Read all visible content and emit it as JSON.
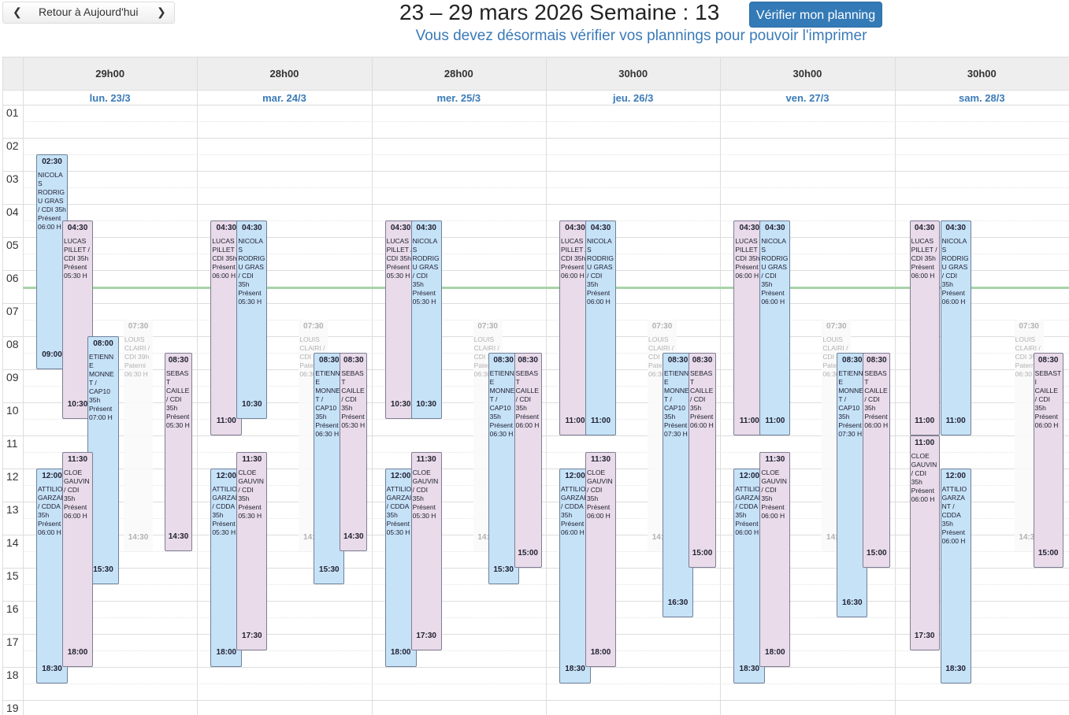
{
  "nav": {
    "today": "Retour à Aujourd'hui"
  },
  "header": {
    "title": "23 – 29 mars 2026 Semaine : 13",
    "button": "Vérifier mon planning",
    "subtitle": "Vous devez désormais vérifier vos plannings pour pouvoir l'imprimer"
  },
  "hours": [
    "01",
    "02",
    "03",
    "04",
    "05",
    "06",
    "07",
    "08",
    "09",
    "10",
    "11",
    "12",
    "13",
    "14",
    "15",
    "16",
    "17",
    "18",
    "19"
  ],
  "days": [
    {
      "total": "29h00",
      "date": "lun. 23/3",
      "events": [
        {
          "start": "02:30",
          "end": "09:00",
          "name": "NICOLAS RODRIGU GRAS / CDI 35h",
          "status": "Présent",
          "hours": "06:00 H",
          "color": "#c6e2f7"
        },
        {
          "start": "04:30",
          "end": "10:30",
          "name": "LUCAS PILLET / CDI 35h",
          "status": "Présent",
          "hours": "05:30 H",
          "color": "#e9dbe9"
        },
        {
          "start": "08:00",
          "end": "15:30",
          "name": "ETIENNE MONNET / CAP10 35h",
          "status": "Présent",
          "hours": "07:00 H",
          "color": "#c6e2f7"
        },
        {
          "start": "07:30",
          "end": "14:30",
          "name": "LOUIS CLAIRI / CDI 39h",
          "status": "Paterni",
          "hours": "06:30 H",
          "color": "#fafafa"
        },
        {
          "start": "08:30",
          "end": "14:30",
          "name": "SEBAST CAILLE / CDI 35h",
          "status": "Présent",
          "hours": "05:30 H",
          "color": "#e9dbe9"
        },
        {
          "start": "12:00",
          "end": "18:30",
          "name": "ATTILIO GARZAI / CDDA 35h",
          "status": "Présent",
          "hours": "06:00 H",
          "color": "#c6e2f7"
        },
        {
          "start": "11:30",
          "end": "18:00",
          "name": "CLOE GAUVIN / CDI 35h",
          "status": "Présent",
          "hours": "06:00 H",
          "color": "#e9dbe9"
        }
      ]
    },
    {
      "total": "28h00",
      "date": "mar. 24/3",
      "events": [
        {
          "start": "04:30",
          "end": "11:00",
          "name": "LUCAS PILLET / CDI 35h",
          "status": "Présent",
          "hours": "06:00 H",
          "color": "#e9dbe9"
        },
        {
          "start": "04:30",
          "end": "10:30",
          "name": "NICOLAS RODRIGU GRAS / CDI 35h",
          "status": "Présent",
          "hours": "05:30 H",
          "color": "#c6e2f7"
        },
        {
          "start": "07:30",
          "end": "14:30",
          "name": "LOUIS CLAIRI / CDI 39h",
          "status": "Paterni",
          "hours": "06:30 H",
          "color": "#fafafa"
        },
        {
          "start": "08:30",
          "end": "15:30",
          "name": "ETIENNE MONNET / CAP10 35h",
          "status": "Présent",
          "hours": "06:30 H",
          "color": "#c6e2f7"
        },
        {
          "start": "08:30",
          "end": "14:30",
          "name": "SEBAST CAILLE / CDI 35h",
          "status": "Présent",
          "hours": "05:30 H",
          "color": "#e9dbe9"
        },
        {
          "start": "12:00",
          "end": "18:00",
          "name": "ATTILIO GARZAI / CDDA 35h",
          "status": "Présent",
          "hours": "05:30 H",
          "color": "#c6e2f7"
        },
        {
          "start": "11:30",
          "end": "17:30",
          "name": "CLOE GAUVIN / CDI 35h",
          "status": "Présent",
          "hours": "05:30 H",
          "color": "#e9dbe9"
        }
      ]
    },
    {
      "total": "28h00",
      "date": "mer. 25/3",
      "events": [
        {
          "start": "04:30",
          "end": "10:30",
          "name": "LUCAS PILLET / CDI 35h",
          "status": "Présent",
          "hours": "05:30 H",
          "color": "#e9dbe9"
        },
        {
          "start": "04:30",
          "end": "10:30",
          "name": "NICOLAS RODRIGU GRAS / CDI 35h",
          "status": "Présent",
          "hours": "05:30 H",
          "color": "#c6e2f7"
        },
        {
          "start": "07:30",
          "end": "14:30",
          "name": "LOUIS CLAIRI / CDI 39h",
          "status": "Paterni",
          "hours": "06:30 H",
          "color": "#fafafa"
        },
        {
          "start": "08:30",
          "end": "15:30",
          "name": "ETIENNE MONNET / CAP10 35h",
          "status": "Présent",
          "hours": "06:30 H",
          "color": "#c6e2f7"
        },
        {
          "start": "08:30",
          "end": "15:00",
          "name": "SEBAST CAILLE / CDI 35h",
          "status": "Présent",
          "hours": "06:00 H",
          "color": "#e9dbe9"
        },
        {
          "start": "12:00",
          "end": "18:00",
          "name": "ATTILIO GARZAI / CDDA 35h",
          "status": "Présent",
          "hours": "05:30 H",
          "color": "#c6e2f7"
        },
        {
          "start": "11:30",
          "end": "17:30",
          "name": "CLOE GAUVIN / CDI 35h",
          "status": "Présent",
          "hours": "05:30 H",
          "color": "#e9dbe9"
        }
      ]
    },
    {
      "total": "30h00",
      "date": "jeu. 26/3",
      "events": [
        {
          "start": "04:30",
          "end": "11:00",
          "name": "LUCAS PILLET / CDI 35h",
          "status": "Présent",
          "hours": "06:00 H",
          "color": "#e9dbe9"
        },
        {
          "start": "04:30",
          "end": "11:00",
          "name": "NICOLAS RODRIGU GRAS / CDI 35h",
          "status": "Présent",
          "hours": "06:00 H",
          "color": "#c6e2f7"
        },
        {
          "start": "07:30",
          "end": "14:30",
          "name": "LOUIS CLAIRI / CDI 39h",
          "status": "Paterni",
          "hours": "06:30 H",
          "color": "#fafafa"
        },
        {
          "start": "08:30",
          "end": "16:30",
          "name": "ETIENNE MONNET / CAP10 35h",
          "status": "Présent",
          "hours": "07:30 H",
          "color": "#c6e2f7"
        },
        {
          "start": "08:30",
          "end": "15:00",
          "name": "SEBAST CAILLE / CDI 35h",
          "status": "Présent",
          "hours": "06:00 H",
          "color": "#e9dbe9"
        },
        {
          "start": "12:00",
          "end": "18:30",
          "name": "ATTILIO GARZAI / CDDA 35h",
          "status": "Présent",
          "hours": "06:00 H",
          "color": "#c6e2f7"
        },
        {
          "start": "11:30",
          "end": "18:00",
          "name": "CLOE GAUVIN / CDI 35h",
          "status": "Présent",
          "hours": "06:00 H",
          "color": "#e9dbe9"
        }
      ]
    },
    {
      "total": "30h00",
      "date": "ven. 27/3",
      "events": [
        {
          "start": "04:30",
          "end": "11:00",
          "name": "LUCAS PILLET / CDI 35h",
          "status": "Présent",
          "hours": "06:00 H",
          "color": "#e9dbe9"
        },
        {
          "start": "04:30",
          "end": "11:00",
          "name": "NICOLAS RODRIGU GRAS / CDI 35h",
          "status": "Présent",
          "hours": "06:00 H",
          "color": "#c6e2f7"
        },
        {
          "start": "07:30",
          "end": "14:30",
          "name": "LOUIS CLAIRI / CDI 39h",
          "status": "Paterni",
          "hours": "06:30 H",
          "color": "#fafafa"
        },
        {
          "start": "08:30",
          "end": "16:30",
          "name": "ETIENNE MONNET / CAP10 35h",
          "status": "Présent",
          "hours": "07:30 H",
          "color": "#c6e2f7"
        },
        {
          "start": "08:30",
          "end": "15:00",
          "name": "SEBAST CAILLE / CDI 35h",
          "status": "Présent",
          "hours": "06:00 H",
          "color": "#e9dbe9"
        },
        {
          "start": "12:00",
          "end": "18:30",
          "name": "ATTILIO GARZAI / CDDA 35h",
          "status": "Présent",
          "hours": "06:00 H",
          "color": "#c6e2f7"
        },
        {
          "start": "11:30",
          "end": "18:00",
          "name": "CLOE GAUVIN / CDI 35h",
          "status": "Présent",
          "hours": "06:00 H",
          "color": "#e9dbe9"
        }
      ]
    },
    {
      "total": "30h00",
      "date": "sam. 28/3",
      "events": [
        {
          "start": "04:30",
          "end": "11:00",
          "name": "LUCAS PILLET / CDI 35h",
          "status": "Présent",
          "hours": "06:00 H",
          "color": "#e9dbe9"
        },
        {
          "start": "04:30",
          "end": "11:00",
          "name": "NICOLAS RODRIGU GRAS / CDI 35h",
          "status": "Présent",
          "hours": "06:00 H",
          "color": "#c6e2f7"
        },
        {
          "start": "11:00",
          "end": "17:30",
          "name": "CLOE GAUVIN / CDI 35h",
          "status": "Présent",
          "hours": "06:00 H",
          "color": "#e9dbe9"
        },
        {
          "start": "12:00",
          "end": "18:30",
          "name": "ATTILIO GARZANT / CDDA 35h",
          "status": "Présent",
          "hours": "06:00 H",
          "color": "#c6e2f7"
        },
        {
          "start": "07:30",
          "end": "14:30",
          "name": "LOUIS CLAIRI / CDI 39h",
          "status": "Paterni",
          "hours": "06:30 H",
          "color": "#fafafa"
        },
        {
          "start": "08:30",
          "end": "15:00",
          "name": "SEBASTI CAILLE / CDI 35h",
          "status": "Présent",
          "hours": "06:00 H",
          "color": "#e9dbe9"
        }
      ]
    }
  ]
}
